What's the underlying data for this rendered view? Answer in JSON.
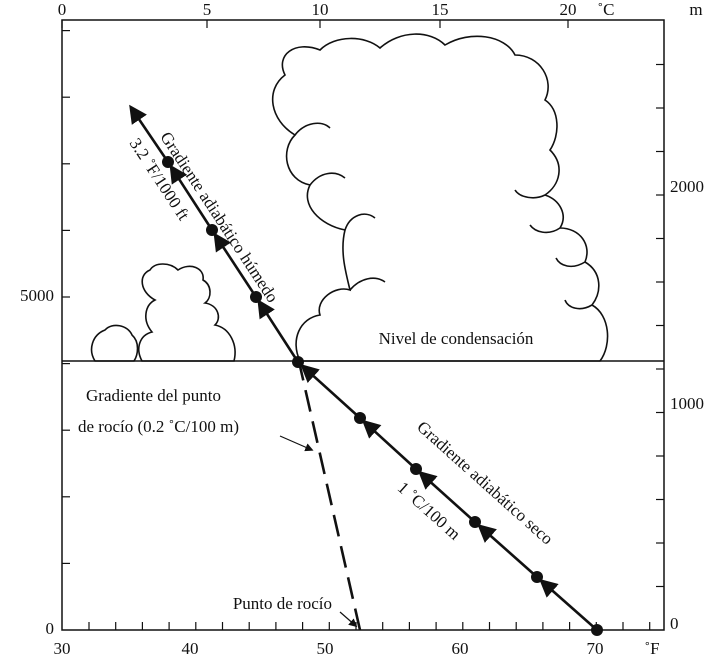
{
  "axes": {
    "top": {
      "unit": "˚C",
      "labels": [
        "0",
        "5",
        "10",
        "15",
        "20"
      ]
    },
    "right": {
      "unit": "m",
      "labels": [
        "2000",
        "1000",
        "0"
      ]
    },
    "bottom": {
      "unit": "˚F",
      "labels": [
        "30",
        "40",
        "50",
        "60",
        "70"
      ]
    },
    "left": {
      "labels": [
        "5000",
        "0"
      ]
    }
  },
  "annotations": {
    "condensation_level": "Nivel de condensación",
    "moist_gradient": "Gradiente adiabático húmedo",
    "moist_rate": "3.2 ˚F/1000 ft",
    "dry_gradient": "Gradiente adiabático seco",
    "dry_rate": "1 ˚C/100 m",
    "dew_gradient_line1": "Gradiente del punto",
    "dew_gradient_line2": "de rocío (0.2 ˚C/100 m)",
    "dew_point": "Punto de rocío"
  }
}
